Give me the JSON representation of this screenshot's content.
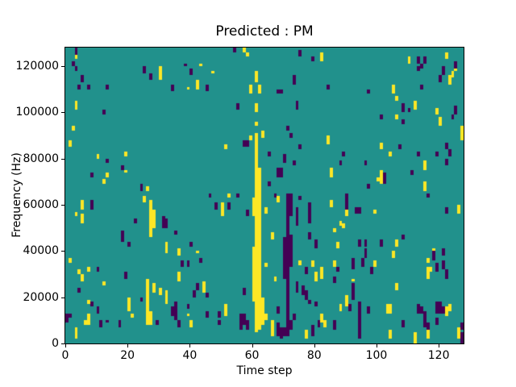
{
  "figure": {
    "title": "Predicted : PM",
    "xlabel": "Time step",
    "ylabel": "Frequency (Hz)"
  },
  "chart_data": {
    "type": "heatmap",
    "title": "Predicted : PM",
    "xlabel": "Time step",
    "ylabel": "Frequency (Hz)",
    "x_bins": 128,
    "y_bins": 128,
    "x_range": [
      0,
      128
    ],
    "y_range_hz": [
      0,
      128000
    ],
    "hz_per_bin": 1000,
    "x_ticks": [
      0,
      20,
      40,
      60,
      80,
      100,
      120
    ],
    "y_ticks": [
      0,
      20000,
      40000,
      60000,
      80000,
      100000,
      120000
    ],
    "grid": false,
    "legend": "none",
    "colors": {
      "background": "#21918c",
      "yellow": "#fde725",
      "purple": "#440154",
      "text": "#000000"
    },
    "cell_encoding": "[time_step, freq_bin_start, vertical_run_length_in_bins]",
    "cells": {
      "yellow": [
        [
          3,
          123,
          2
        ],
        [
          3,
          101,
          4
        ],
        [
          2,
          92,
          2
        ],
        [
          1,
          85,
          3
        ],
        [
          5,
          52,
          4
        ],
        [
          5,
          58,
          4
        ],
        [
          3,
          55,
          2
        ],
        [
          1,
          35,
          2
        ],
        [
          4,
          30,
          2
        ],
        [
          5,
          27,
          3
        ],
        [
          7,
          31,
          2
        ],
        [
          7,
          17,
          2
        ],
        [
          7,
          11,
          2
        ],
        [
          6,
          8,
          2
        ],
        [
          7,
          8,
          3
        ],
        [
          3,
          2,
          5
        ],
        [
          10,
          80,
          2
        ],
        [
          12,
          69,
          2
        ],
        [
          13,
          72,
          2
        ],
        [
          12,
          25,
          2
        ],
        [
          19,
          81,
          2
        ],
        [
          19,
          74,
          1
        ],
        [
          20,
          14,
          6
        ],
        [
          21,
          11,
          2
        ],
        [
          25,
          61,
          3
        ],
        [
          26,
          66,
          2
        ],
        [
          26,
          8,
          20
        ],
        [
          27,
          8,
          6
        ],
        [
          27,
          46,
          16
        ],
        [
          28,
          50,
          8
        ],
        [
          28,
          22,
          4
        ],
        [
          30,
          114,
          6
        ],
        [
          30,
          21,
          3
        ],
        [
          32,
          17,
          6
        ],
        [
          32,
          39,
          5
        ],
        [
          36,
          38,
          3
        ],
        [
          36,
          27,
          4
        ],
        [
          39,
          110,
          1
        ],
        [
          39,
          12,
          1
        ],
        [
          40,
          7,
          3
        ],
        [
          42,
          110,
          4
        ],
        [
          42,
          39,
          1
        ],
        [
          43,
          120,
          1
        ],
        [
          44,
          22,
          5
        ],
        [
          47,
          117,
          1
        ],
        [
          50,
          55,
          6
        ],
        [
          51,
          84,
          2
        ],
        [
          51,
          12,
          5
        ],
        [
          52,
          63,
          2
        ],
        [
          57,
          126,
          2
        ],
        [
          58,
          124,
          2
        ],
        [
          59,
          108,
          4
        ],
        [
          59,
          88,
          2
        ],
        [
          60,
          18,
          24
        ],
        [
          60,
          55,
          8
        ],
        [
          61,
          5,
          86
        ],
        [
          61,
          94,
          2
        ],
        [
          61,
          100,
          4
        ],
        [
          61,
          113,
          5
        ],
        [
          62,
          6,
          70
        ],
        [
          62,
          108,
          4
        ],
        [
          63,
          8,
          12
        ],
        [
          63,
          89,
          3
        ],
        [
          64,
          10,
          3
        ],
        [
          64,
          33,
          2
        ],
        [
          64,
          56,
          3
        ],
        [
          66,
          3,
          7
        ],
        [
          66,
          45,
          3
        ],
        [
          67,
          27,
          2
        ],
        [
          68,
          61,
          3
        ],
        [
          75,
          34,
          2
        ],
        [
          77,
          2,
          4
        ],
        [
          79,
          33,
          3
        ],
        [
          80,
          27,
          4
        ],
        [
          80,
          42,
          2
        ],
        [
          82,
          9,
          4
        ],
        [
          82,
          28,
          5
        ],
        [
          82,
          122,
          4
        ],
        [
          83,
          7,
          3
        ],
        [
          84,
          86,
          4
        ],
        [
          85,
          59,
          3
        ],
        [
          85,
          72,
          4
        ],
        [
          86,
          33,
          3
        ],
        [
          86,
          48,
          2
        ],
        [
          87,
          41,
          3
        ],
        [
          88,
          14,
          3
        ],
        [
          88,
          51,
          2
        ],
        [
          89,
          50,
          2
        ],
        [
          90,
          16,
          5
        ],
        [
          90,
          55,
          4
        ],
        [
          90,
          62,
          3
        ],
        [
          92,
          27,
          1
        ],
        [
          99,
          33,
          3
        ],
        [
          99,
          56,
          2
        ],
        [
          100,
          70,
          2
        ],
        [
          101,
          69,
          6
        ],
        [
          101,
          84,
          3
        ],
        [
          103,
          13,
          4
        ],
        [
          104,
          13,
          4
        ],
        [
          104,
          2,
          4
        ],
        [
          104,
          81,
          2
        ],
        [
          105,
          37,
          3
        ],
        [
          105,
          108,
          4
        ],
        [
          106,
          105,
          2
        ],
        [
          106,
          42,
          3
        ],
        [
          106,
          97,
          2
        ],
        [
          106,
          23,
          3
        ],
        [
          110,
          121,
          3
        ],
        [
          112,
          101,
          4
        ],
        [
          112,
          0,
          5
        ],
        [
          115,
          66,
          4
        ],
        [
          115,
          75,
          4
        ],
        [
          116,
          2,
          6
        ],
        [
          116,
          28,
          5
        ],
        [
          116,
          35,
          2
        ],
        [
          117,
          31,
          2
        ],
        [
          118,
          38,
          3
        ],
        [
          119,
          99,
          3
        ],
        [
          120,
          94,
          4
        ],
        [
          122,
          12,
          4
        ],
        [
          122,
          123,
          3
        ],
        [
          123,
          14,
          3
        ],
        [
          123,
          112,
          4
        ],
        [
          124,
          115,
          3
        ],
        [
          125,
          118,
          2
        ],
        [
          126,
          2,
          5
        ],
        [
          126,
          56,
          4
        ],
        [
          127,
          88,
          6
        ]
      ],
      "purple": [
        [
          0,
          9,
          4
        ],
        [
          1,
          11,
          2
        ],
        [
          2,
          120,
          2
        ],
        [
          3,
          125,
          3
        ],
        [
          3,
          118,
          2
        ],
        [
          4,
          110,
          2
        ],
        [
          4,
          22,
          2
        ],
        [
          5,
          113,
          3
        ],
        [
          7,
          110,
          2
        ],
        [
          8,
          58,
          4
        ],
        [
          8,
          72,
          2
        ],
        [
          8,
          16,
          2
        ],
        [
          10,
          31,
          2
        ],
        [
          10,
          13,
          3
        ],
        [
          11,
          7,
          3
        ],
        [
          12,
          99,
          2
        ],
        [
          13,
          110,
          2
        ],
        [
          13,
          78,
          2
        ],
        [
          13,
          9,
          1
        ],
        [
          17,
          7,
          3
        ],
        [
          18,
          75,
          2
        ],
        [
          18,
          44,
          5
        ],
        [
          19,
          28,
          3
        ],
        [
          20,
          42,
          2
        ],
        [
          22,
          52,
          2
        ],
        [
          24,
          66,
          3
        ],
        [
          24,
          18,
          2
        ],
        [
          25,
          117,
          3
        ],
        [
          27,
          114,
          3
        ],
        [
          29,
          8,
          2
        ],
        [
          31,
          50,
          5
        ],
        [
          32,
          50,
          4
        ],
        [
          34,
          109,
          3
        ],
        [
          34,
          12,
          4
        ],
        [
          35,
          10,
          8
        ],
        [
          35,
          47,
          2
        ],
        [
          36,
          7,
          3
        ],
        [
          37,
          33,
          3
        ],
        [
          38,
          120,
          1
        ],
        [
          39,
          15,
          2
        ],
        [
          39,
          33,
          3
        ],
        [
          40,
          116,
          3
        ],
        [
          40,
          42,
          2
        ],
        [
          41,
          20,
          3
        ],
        [
          42,
          23,
          3
        ],
        [
          43,
          35,
          2
        ],
        [
          45,
          109,
          3
        ],
        [
          45,
          20,
          2
        ],
        [
          45,
          11,
          3
        ],
        [
          46,
          63,
          2
        ],
        [
          48,
          58,
          3
        ],
        [
          49,
          11,
          3
        ],
        [
          49,
          8,
          2
        ],
        [
          52,
          58,
          3
        ],
        [
          54,
          126,
          2
        ],
        [
          55,
          101,
          3
        ],
        [
          55,
          63,
          2
        ],
        [
          56,
          6,
          7
        ],
        [
          57,
          85,
          3
        ],
        [
          57,
          8,
          5
        ],
        [
          57,
          21,
          3
        ],
        [
          58,
          85,
          3
        ],
        [
          58,
          55,
          3
        ],
        [
          58,
          6,
          4
        ],
        [
          65,
          81,
          2
        ],
        [
          65,
          68,
          2
        ],
        [
          67,
          63,
          2
        ],
        [
          68,
          108,
          2
        ],
        [
          68,
          72,
          4
        ],
        [
          68,
          13,
          3
        ],
        [
          68,
          3,
          6
        ],
        [
          69,
          108,
          2
        ],
        [
          69,
          72,
          4
        ],
        [
          69,
          2,
          5
        ],
        [
          70,
          28,
          18
        ],
        [
          70,
          78,
          4
        ],
        [
          70,
          3,
          4
        ],
        [
          71,
          3,
          62
        ],
        [
          71,
          92,
          2
        ],
        [
          72,
          33,
          14
        ],
        [
          72,
          55,
          10
        ],
        [
          72,
          89,
          2
        ],
        [
          72,
          6,
          4
        ],
        [
          73,
          112,
          4
        ],
        [
          73,
          77,
          2
        ],
        [
          73,
          10,
          3
        ],
        [
          74,
          101,
          4
        ],
        [
          74,
          51,
          8
        ],
        [
          74,
          22,
          5
        ],
        [
          75,
          124,
          3
        ],
        [
          75,
          84,
          2
        ],
        [
          75,
          62,
          2
        ],
        [
          76,
          21,
          4
        ],
        [
          77,
          19,
          4
        ],
        [
          77,
          30,
          3
        ],
        [
          78,
          52,
          9
        ],
        [
          78,
          45,
          3
        ],
        [
          78,
          17,
          2
        ],
        [
          79,
          122,
          2
        ],
        [
          79,
          3,
          5
        ],
        [
          80,
          41,
          4
        ],
        [
          80,
          16,
          2
        ],
        [
          81,
          7,
          3
        ],
        [
          84,
          110,
          2
        ],
        [
          86,
          26,
          3
        ],
        [
          86,
          6,
          4
        ],
        [
          87,
          31,
          2
        ],
        [
          88,
          77,
          2
        ],
        [
          89,
          81,
          2
        ],
        [
          90,
          58,
          7
        ],
        [
          91,
          14,
          3
        ],
        [
          92,
          19,
          7
        ],
        [
          92,
          32,
          5
        ],
        [
          93,
          56,
          3
        ],
        [
          94,
          56,
          3
        ],
        [
          94,
          42,
          3
        ],
        [
          94,
          13,
          5
        ],
        [
          94,
          2,
          11
        ],
        [
          95,
          33,
          4
        ],
        [
          96,
          42,
          3
        ],
        [
          96,
          37,
          4
        ],
        [
          96,
          77,
          2
        ],
        [
          97,
          67,
          2
        ],
        [
          97,
          108,
          2
        ],
        [
          97,
          13,
          3
        ],
        [
          98,
          30,
          3
        ],
        [
          101,
          97,
          2
        ],
        [
          101,
          42,
          3
        ],
        [
          102,
          69,
          5
        ],
        [
          107,
          84,
          2
        ],
        [
          108,
          100,
          4
        ],
        [
          108,
          95,
          2
        ],
        [
          108,
          45,
          2
        ],
        [
          108,
          7,
          3
        ],
        [
          110,
          100,
          2
        ],
        [
          111,
          73,
          2
        ],
        [
          113,
          121,
          3
        ],
        [
          113,
          118,
          2
        ],
        [
          113,
          81,
          2
        ],
        [
          113,
          13,
          4
        ],
        [
          114,
          110,
          2
        ],
        [
          114,
          119,
          2
        ],
        [
          114,
          13,
          3
        ],
        [
          115,
          121,
          3
        ],
        [
          115,
          10,
          4
        ],
        [
          115,
          7,
          3
        ],
        [
          116,
          63,
          2
        ],
        [
          116,
          6,
          3
        ],
        [
          118,
          36,
          4
        ],
        [
          119,
          81,
          2
        ],
        [
          119,
          31,
          4
        ],
        [
          119,
          13,
          5
        ],
        [
          119,
          8,
          3
        ],
        [
          120,
          113,
          3
        ],
        [
          120,
          13,
          5
        ],
        [
          121,
          116,
          4
        ],
        [
          121,
          38,
          3
        ],
        [
          121,
          32,
          4
        ],
        [
          121,
          13,
          3
        ],
        [
          122,
          28,
          4
        ],
        [
          122,
          84,
          3
        ],
        [
          122,
          77,
          3
        ],
        [
          122,
          56,
          3
        ],
        [
          123,
          81,
          3
        ],
        [
          124,
          97,
          2
        ],
        [
          125,
          119,
          3
        ],
        [
          125,
          99,
          4
        ],
        [
          127,
          0,
          5
        ],
        [
          127,
          6,
          3
        ]
      ]
    }
  }
}
